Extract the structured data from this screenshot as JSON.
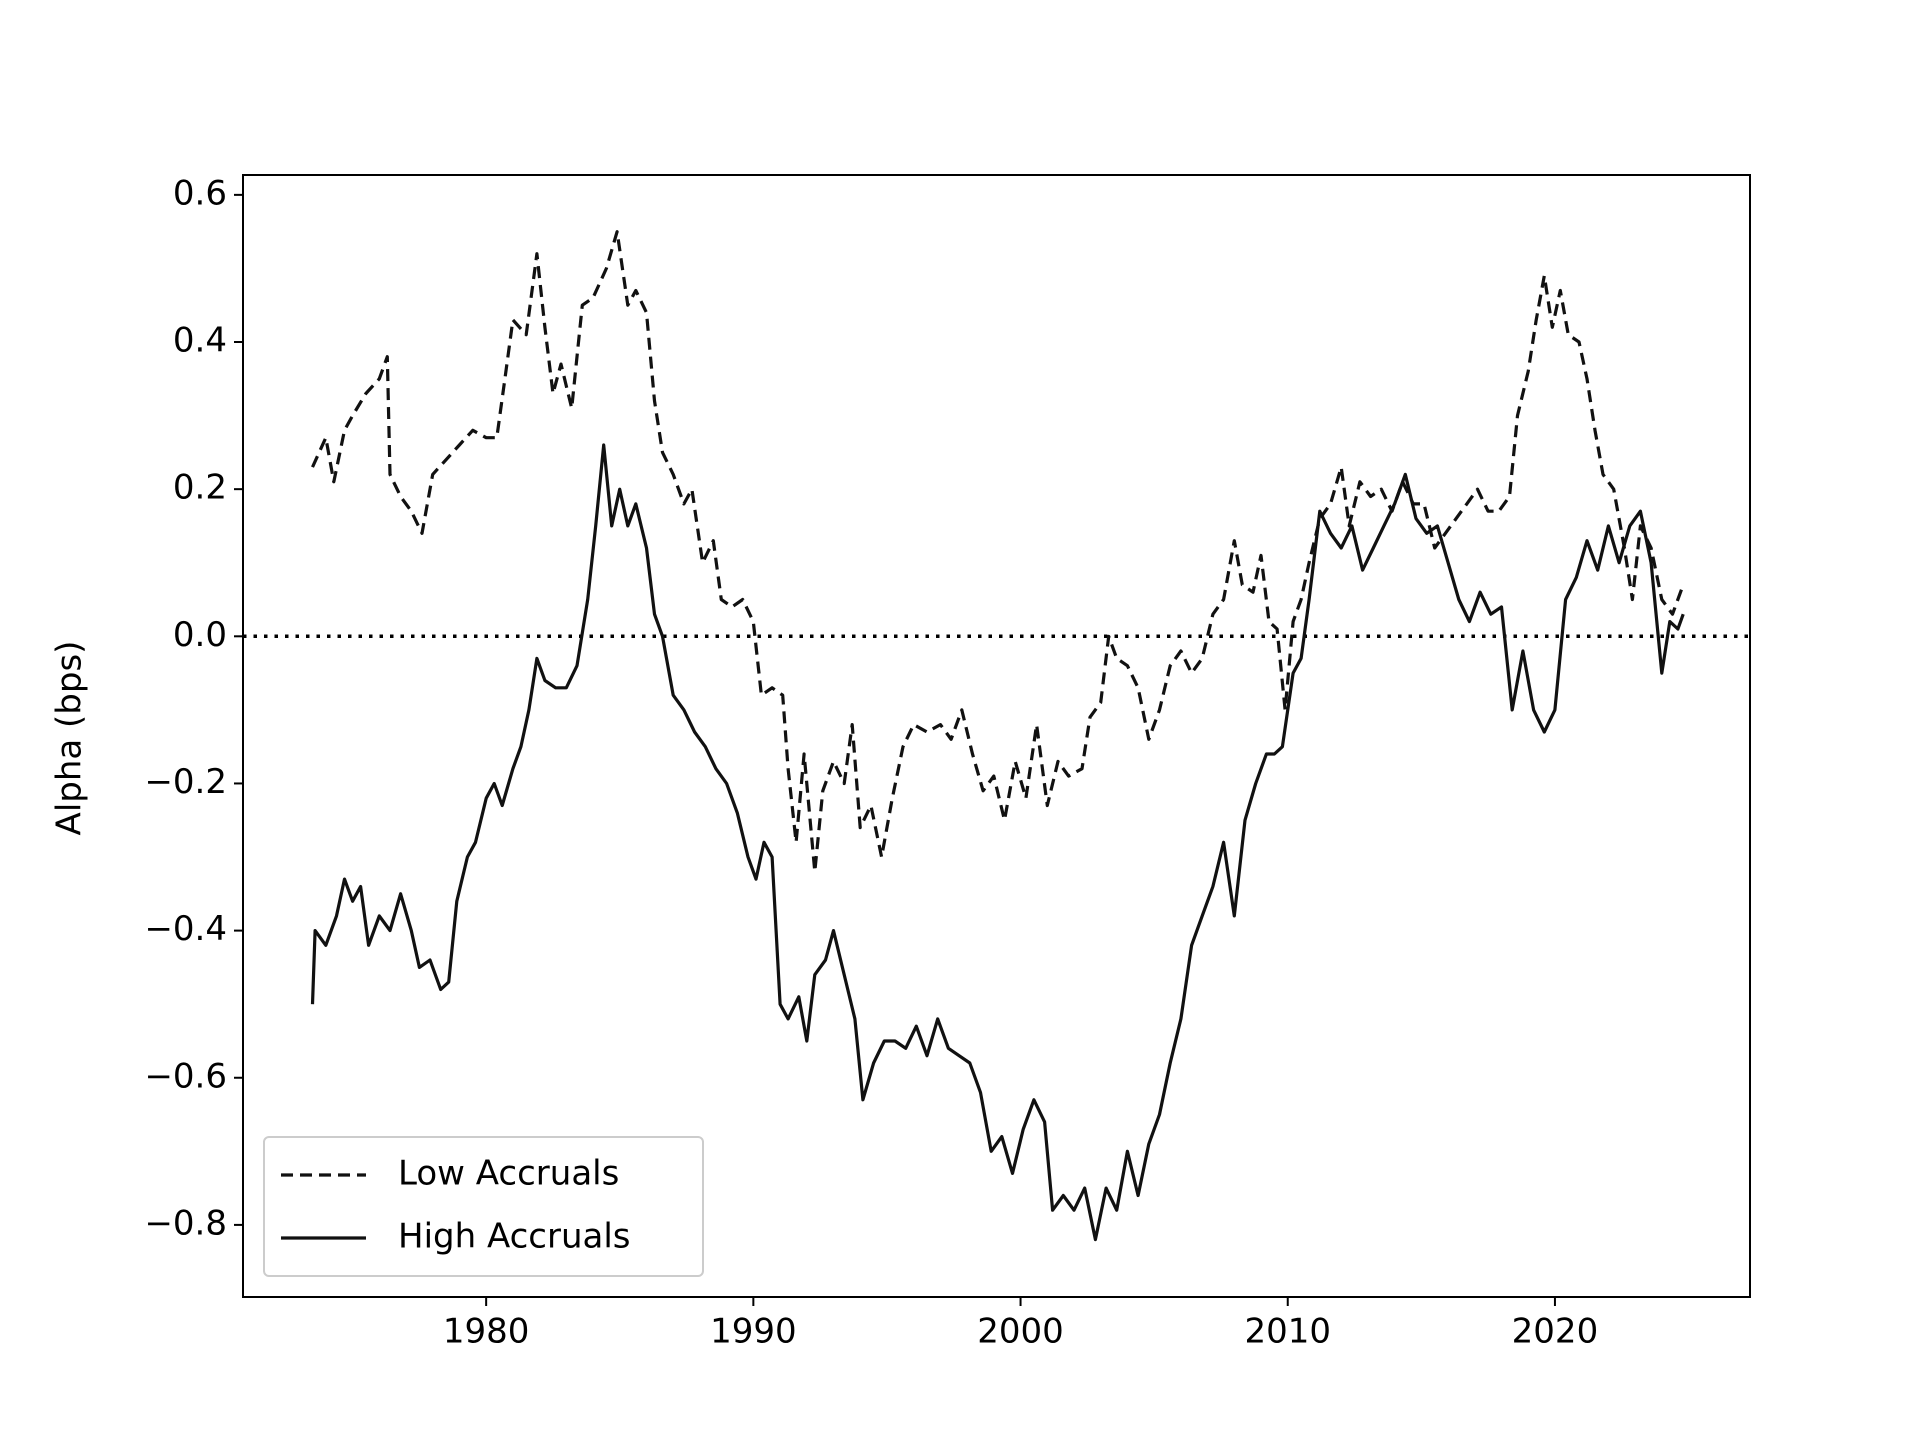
{
  "chart_data": {
    "type": "line",
    "y_label": "Alpha (bps)",
    "xlim": [
      1970.9,
      2027.3
    ],
    "xticks": [
      1980,
      1990,
      2000,
      2010,
      2020
    ],
    "ylim": [
      -0.898,
      0.627
    ],
    "yticks": [
      {
        "value": -0.8,
        "label": "−0.8"
      },
      {
        "value": -0.6,
        "label": "−0.6"
      },
      {
        "value": -0.4,
        "label": "−0.4"
      },
      {
        "value": -0.2,
        "label": "−0.2"
      },
      {
        "value": 0,
        "label": "0.0"
      },
      0.2,
      0.4,
      0.6
    ],
    "hline": 0,
    "legend": "lower left",
    "series": [
      {
        "name": "Low Accruals",
        "color": "#111111",
        "dash": true,
        "x": [
          1973.5,
          1974,
          1974.3,
          1974.7,
          1975,
          1975.5,
          1976,
          1976.3,
          1976.4,
          1976.8,
          1977.2,
          1977.6,
          1978,
          1978.5,
          1979,
          1979.5,
          1980,
          1980.4,
          1980.7,
          1981,
          1981.5,
          1981.9,
          1982.2,
          1982.5,
          1982.8,
          1983.2,
          1983.6,
          1984,
          1984.5,
          1984.9,
          1985.3,
          1985.6,
          1986,
          1986.3,
          1986.6,
          1987,
          1987.4,
          1987.7,
          1988.1,
          1988.5,
          1988.8,
          1989.2,
          1989.6,
          1990,
          1990.3,
          1990.7,
          1991.1,
          1991.3,
          1991.6,
          1991.9,
          1992.3,
          1992.6,
          1993,
          1993.4,
          1993.7,
          1994,
          1994.4,
          1994.8,
          1995.2,
          1995.6,
          1996,
          1996.5,
          1997,
          1997.4,
          1997.8,
          1998.2,
          1998.6,
          1999,
          1999.4,
          1999.8,
          2000.2,
          2000.6,
          2001,
          2001.4,
          2001.8,
          2002.3,
          2002.6,
          2003,
          2003.3,
          2003.6,
          2004,
          2004.4,
          2004.8,
          2005.2,
          2005.6,
          2006,
          2006.4,
          2006.8,
          2007.2,
          2007.6,
          2008,
          2008.3,
          2008.7,
          2009,
          2009.3,
          2009.6,
          2009.9,
          2010.2,
          2010.5,
          2010.8,
          2011.2,
          2011.6,
          2012,
          2012.3,
          2012.7,
          2013.1,
          2013.5,
          2013.9,
          2014.3,
          2014.7,
          2015.1,
          2015.5,
          2015.9,
          2016.3,
          2016.7,
          2017.1,
          2017.5,
          2017.9,
          2018.3,
          2018.6,
          2019,
          2019.3,
          2019.6,
          2019.9,
          2020.2,
          2020.5,
          2020.9,
          2021.2,
          2021.5,
          2021.8,
          2022.2,
          2022.6,
          2022.9,
          2023.2,
          2023.6,
          2024,
          2024.4,
          2024.8
        ],
        "values": [
          0.23,
          0.27,
          0.21,
          0.28,
          0.3,
          0.33,
          0.35,
          0.38,
          0.22,
          0.19,
          0.17,
          0.14,
          0.22,
          0.24,
          0.26,
          0.28,
          0.27,
          0.27,
          0.35,
          0.43,
          0.41,
          0.52,
          0.42,
          0.33,
          0.37,
          0.31,
          0.45,
          0.46,
          0.5,
          0.55,
          0.45,
          0.47,
          0.44,
          0.32,
          0.25,
          0.22,
          0.18,
          0.2,
          0.1,
          0.13,
          0.05,
          0.04,
          0.05,
          0.02,
          -0.08,
          -0.07,
          -0.08,
          -0.18,
          -0.28,
          -0.16,
          -0.32,
          -0.21,
          -0.17,
          -0.2,
          -0.12,
          -0.26,
          -0.23,
          -0.3,
          -0.22,
          -0.15,
          -0.12,
          -0.13,
          -0.12,
          -0.14,
          -0.1,
          -0.16,
          -0.21,
          -0.19,
          -0.25,
          -0.17,
          -0.22,
          -0.12,
          -0.23,
          -0.17,
          -0.19,
          -0.18,
          -0.11,
          -0.09,
          0.0,
          -0.03,
          -0.04,
          -0.07,
          -0.14,
          -0.1,
          -0.04,
          -0.02,
          -0.05,
          -0.03,
          0.03,
          0.05,
          0.13,
          0.07,
          0.06,
          0.11,
          0.02,
          0.01,
          -0.1,
          0.02,
          0.05,
          0.1,
          0.16,
          0.18,
          0.23,
          0.15,
          0.21,
          0.19,
          0.2,
          0.17,
          0.21,
          0.18,
          0.18,
          0.12,
          0.14,
          0.16,
          0.18,
          0.2,
          0.17,
          0.17,
          0.19,
          0.3,
          0.36,
          0.43,
          0.49,
          0.42,
          0.47,
          0.41,
          0.4,
          0.35,
          0.28,
          0.22,
          0.2,
          0.12,
          0.05,
          0.15,
          0.12,
          0.05,
          0.03,
          0.07
        ]
      },
      {
        "name": "High Accruals",
        "color": "#111111",
        "dash": false,
        "x": [
          1973.5,
          1973.6,
          1974,
          1974.4,
          1974.7,
          1975,
          1975.3,
          1975.6,
          1976,
          1976.4,
          1976.8,
          1977.2,
          1977.5,
          1977.9,
          1978.3,
          1978.6,
          1978.9,
          1979.3,
          1979.6,
          1980,
          1980.3,
          1980.6,
          1981,
          1981.3,
          1981.6,
          1981.9,
          1982.2,
          1982.6,
          1983,
          1983.4,
          1983.8,
          1984.1,
          1984.4,
          1984.7,
          1985,
          1985.3,
          1985.6,
          1986,
          1986.3,
          1986.6,
          1987,
          1987.4,
          1987.8,
          1988.2,
          1988.6,
          1989,
          1989.4,
          1989.8,
          1990.1,
          1990.4,
          1990.7,
          1991,
          1991.3,
          1991.7,
          1992,
          1992.3,
          1992.7,
          1993,
          1993.4,
          1993.8,
          1994.1,
          1994.5,
          1994.9,
          1995.3,
          1995.7,
          1996.1,
          1996.5,
          1996.9,
          1997.3,
          1997.7,
          1998.1,
          1998.5,
          1998.9,
          1999.3,
          1999.7,
          2000.1,
          2000.5,
          2000.9,
          2001.2,
          2001.6,
          2002,
          2002.4,
          2002.8,
          2003.2,
          2003.6,
          2004,
          2004.4,
          2004.8,
          2005.2,
          2005.6,
          2006,
          2006.4,
          2006.8,
          2007.2,
          2007.6,
          2008,
          2008.4,
          2008.8,
          2009.2,
          2009.5,
          2009.8,
          2010.2,
          2010.5,
          2010.8,
          2011.2,
          2011.6,
          2012,
          2012.4,
          2012.8,
          2013.2,
          2013.6,
          2014,
          2014.4,
          2014.8,
          2015.2,
          2015.6,
          2016,
          2016.4,
          2016.8,
          2017.2,
          2017.6,
          2018,
          2018.4,
          2018.8,
          2019.2,
          2019.6,
          2020,
          2020.4,
          2020.8,
          2021.2,
          2021.6,
          2022,
          2022.4,
          2022.8,
          2023.2,
          2023.6,
          2024,
          2024.3,
          2024.6,
          2024.8
        ],
        "values": [
          -0.5,
          -0.4,
          -0.42,
          -0.38,
          -0.33,
          -0.36,
          -0.34,
          -0.42,
          -0.38,
          -0.4,
          -0.35,
          -0.4,
          -0.45,
          -0.44,
          -0.48,
          -0.47,
          -0.36,
          -0.3,
          -0.28,
          -0.22,
          -0.2,
          -0.23,
          -0.18,
          -0.15,
          -0.1,
          -0.03,
          -0.06,
          -0.07,
          -0.07,
          -0.04,
          0.05,
          0.15,
          0.26,
          0.15,
          0.2,
          0.15,
          0.18,
          0.12,
          0.03,
          0.0,
          -0.08,
          -0.1,
          -0.13,
          -0.15,
          -0.18,
          -0.2,
          -0.24,
          -0.3,
          -0.33,
          -0.28,
          -0.3,
          -0.5,
          -0.52,
          -0.49,
          -0.55,
          -0.46,
          -0.44,
          -0.4,
          -0.46,
          -0.52,
          -0.63,
          -0.58,
          -0.55,
          -0.55,
          -0.56,
          -0.53,
          -0.57,
          -0.52,
          -0.56,
          -0.57,
          -0.58,
          -0.62,
          -0.7,
          -0.68,
          -0.73,
          -0.67,
          -0.63,
          -0.66,
          -0.78,
          -0.76,
          -0.78,
          -0.75,
          -0.82,
          -0.75,
          -0.78,
          -0.7,
          -0.76,
          -0.69,
          -0.65,
          -0.58,
          -0.52,
          -0.42,
          -0.38,
          -0.34,
          -0.28,
          -0.38,
          -0.25,
          -0.2,
          -0.16,
          -0.16,
          -0.15,
          -0.05,
          -0.03,
          0.05,
          0.17,
          0.14,
          0.12,
          0.15,
          0.09,
          0.12,
          0.15,
          0.18,
          0.22,
          0.16,
          0.14,
          0.15,
          0.1,
          0.05,
          0.02,
          0.06,
          0.03,
          0.04,
          -0.1,
          -0.02,
          -0.1,
          -0.13,
          -0.1,
          0.05,
          0.08,
          0.13,
          0.09,
          0.15,
          0.1,
          0.15,
          0.17,
          0.1,
          -0.05,
          0.02,
          0.01,
          0.03
        ]
      }
    ]
  }
}
